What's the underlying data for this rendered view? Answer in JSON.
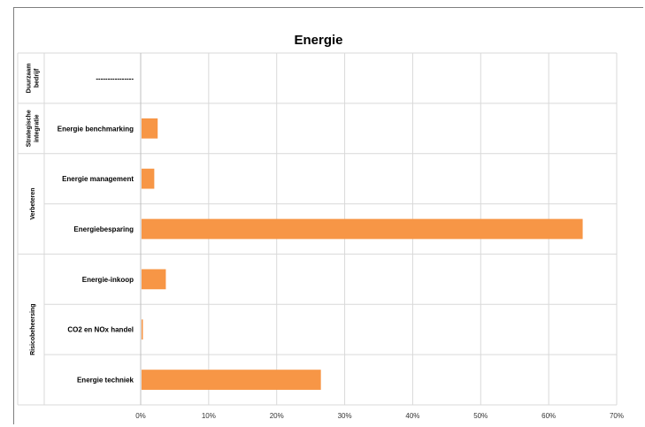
{
  "chart_data": {
    "type": "bar",
    "orientation": "horizontal",
    "title": "Energie",
    "xlim": [
      0,
      70
    ],
    "x_ticks": [
      "0%",
      "10%",
      "20%",
      "30%",
      "40%",
      "50%",
      "60%",
      "70%"
    ],
    "groups": [
      {
        "name": "Duurzaam bedrijf",
        "lines": [
          "Duurzaam",
          "bedrijf"
        ],
        "categories": [
          {
            "label": "----------------",
            "value": null
          }
        ]
      },
      {
        "name": "Strategische integratie",
        "lines": [
          "Strategische",
          "integratie"
        ],
        "categories": [
          {
            "label": "Energie benchmarking",
            "value": 2.5
          }
        ]
      },
      {
        "name": "Verbeteren",
        "lines": [
          "Verbeteren"
        ],
        "categories": [
          {
            "label": "Energie management",
            "value": 2
          },
          {
            "label": "Energiebesparing",
            "value": 65
          }
        ]
      },
      {
        "name": "Risicobeheersing",
        "lines": [
          "Risicobeheersing"
        ],
        "categories": [
          {
            "label": "Energie-inkoop",
            "value": 3.7
          },
          {
            "label": "CO2 en NOx handel",
            "value": 0.3
          },
          {
            "label": "Energie techniek",
            "value": 26.5
          }
        ]
      }
    ],
    "bar_color": "#f79646",
    "grid": true,
    "legend": "none"
  }
}
